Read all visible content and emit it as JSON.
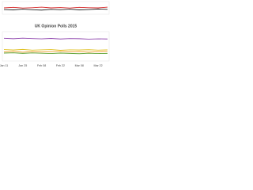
{
  "chart_data": [
    {
      "type": "line",
      "ylim": [
        30,
        37
      ],
      "series": [
        {
          "color": "#d62728",
          "values": [
            33.5,
            33.8,
            33.4,
            33.6,
            33.9,
            33.5,
            33.7,
            33.4,
            33.8,
            33.6,
            33.5,
            33.9
          ]
        },
        {
          "color": "#222222",
          "values": [
            32.6,
            32.4,
            32.8,
            32.5,
            32.3,
            32.7,
            32.5,
            32.8,
            32.4,
            32.6,
            32.9,
            32.7
          ]
        }
      ]
    },
    {
      "type": "line",
      "title": "UK Opinion Polls 2015",
      "ylim": [
        0,
        20
      ],
      "categories": [
        "Jan 11",
        null,
        "Jan 25",
        null,
        "Feb 08",
        null,
        "Feb 22",
        null,
        "Mar 08",
        null,
        "Mar 22",
        null
      ],
      "series": [
        {
          "color": "#8e44ad",
          "values": [
            15.5,
            15.2,
            15.6,
            15.3,
            15.1,
            15.4,
            15.0,
            15.3,
            15.2,
            14.9,
            15.1,
            15.0
          ]
        },
        {
          "color": "#e0c020",
          "values": [
            7.8,
            7.5,
            7.9,
            7.4,
            7.6,
            7.8,
            7.3,
            7.6,
            7.5,
            7.7,
            7.4,
            7.6
          ]
        },
        {
          "color": "#f0a030",
          "values": [
            6.2,
            6.5,
            6.0,
            6.4,
            6.1,
            6.3,
            6.6,
            6.2,
            6.4,
            6.0,
            6.3,
            6.5
          ]
        },
        {
          "color": "#5aa02c",
          "values": [
            5.4,
            5.6,
            5.2,
            5.5,
            5.3,
            5.1,
            5.4,
            5.2,
            5.0,
            5.3,
            5.1,
            5.2
          ]
        }
      ]
    }
  ]
}
